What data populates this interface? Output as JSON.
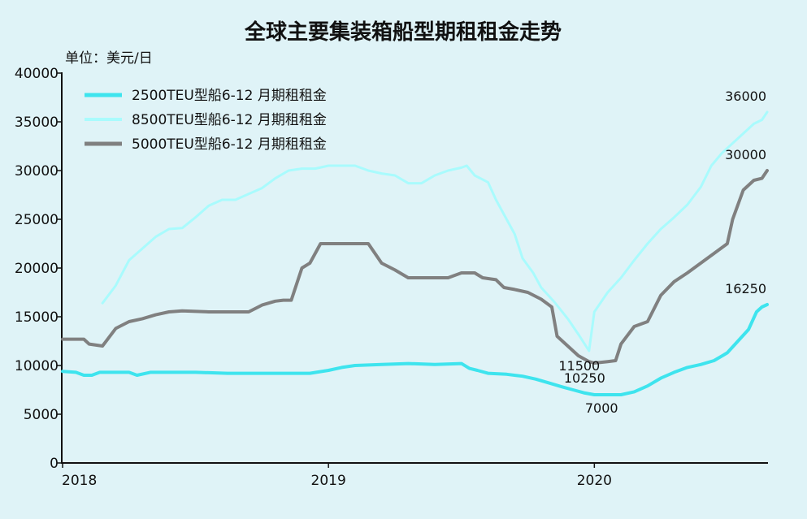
{
  "chart_data": {
    "type": "line",
    "title": "全球主要集装箱船型期租租金走势",
    "unit_label": "单位：美元/日",
    "ylim": [
      0,
      40000
    ],
    "y_ticks": [
      "0",
      "5000",
      "10000",
      "15000",
      "20000",
      "25000",
      "30000",
      "35000",
      "40000"
    ],
    "x_ticks": [
      {
        "label": "2018",
        "t": 2018.0
      },
      {
        "label": "2019",
        "t": 2019.0
      },
      {
        "label": "2020",
        "t": 2020.0
      }
    ],
    "xlim": [
      2018.0,
      2020.65
    ],
    "grid": false,
    "legend_position": "top-left",
    "series": [
      {
        "name": "2500TEU型船6-12 月期租租金",
        "color": "#3ee4ee",
        "width": 4,
        "points": [
          [
            2018.0,
            9400
          ],
          [
            2018.05,
            9300
          ],
          [
            2018.08,
            9000
          ],
          [
            2018.11,
            9000
          ],
          [
            2018.14,
            9300
          ],
          [
            2018.25,
            9300
          ],
          [
            2018.28,
            9000
          ],
          [
            2018.33,
            9300
          ],
          [
            2018.5,
            9300
          ],
          [
            2018.62,
            9200
          ],
          [
            2018.75,
            9200
          ],
          [
            2018.86,
            9200
          ],
          [
            2018.93,
            9200
          ],
          [
            2019.0,
            9500
          ],
          [
            2019.05,
            9800
          ],
          [
            2019.1,
            10000
          ],
          [
            2019.2,
            10100
          ],
          [
            2019.3,
            10200
          ],
          [
            2019.4,
            10100
          ],
          [
            2019.5,
            10200
          ],
          [
            2019.53,
            9700
          ],
          [
            2019.56,
            9500
          ],
          [
            2019.6,
            9200
          ],
          [
            2019.67,
            9100
          ],
          [
            2019.73,
            8900
          ],
          [
            2019.78,
            8600
          ],
          [
            2019.83,
            8200
          ],
          [
            2019.88,
            7800
          ],
          [
            2019.92,
            7500
          ],
          [
            2019.96,
            7200
          ],
          [
            2020.0,
            7000
          ],
          [
            2020.05,
            7000
          ],
          [
            2020.1,
            7000
          ],
          [
            2020.15,
            7300
          ],
          [
            2020.2,
            7900
          ],
          [
            2020.25,
            8700
          ],
          [
            2020.3,
            9300
          ],
          [
            2020.35,
            9800
          ],
          [
            2020.4,
            10100
          ],
          [
            2020.45,
            10500
          ],
          [
            2020.5,
            11300
          ],
          [
            2020.54,
            12500
          ],
          [
            2020.58,
            13700
          ],
          [
            2020.61,
            15500
          ],
          [
            2020.63,
            16000
          ],
          [
            2020.65,
            16250
          ]
        ]
      },
      {
        "name": "8500TEU型船6-12 月期租租金",
        "color": "#a9fbfd",
        "width": 3,
        "points": [
          [
            2018.15,
            16400
          ],
          [
            2018.2,
            18200
          ],
          [
            2018.25,
            20800
          ],
          [
            2018.3,
            22000
          ],
          [
            2018.35,
            23200
          ],
          [
            2018.4,
            24000
          ],
          [
            2018.45,
            24100
          ],
          [
            2018.5,
            25200
          ],
          [
            2018.55,
            26400
          ],
          [
            2018.6,
            27000
          ],
          [
            2018.65,
            27000
          ],
          [
            2018.7,
            27600
          ],
          [
            2018.75,
            28200
          ],
          [
            2018.8,
            29200
          ],
          [
            2018.85,
            30000
          ],
          [
            2018.9,
            30200
          ],
          [
            2018.95,
            30200
          ],
          [
            2019.0,
            30500
          ],
          [
            2019.05,
            30500
          ],
          [
            2019.1,
            30500
          ],
          [
            2019.15,
            30000
          ],
          [
            2019.2,
            29700
          ],
          [
            2019.25,
            29500
          ],
          [
            2019.3,
            28700
          ],
          [
            2019.35,
            28700
          ],
          [
            2019.4,
            29500
          ],
          [
            2019.45,
            30000
          ],
          [
            2019.5,
            30300
          ],
          [
            2019.52,
            30500
          ],
          [
            2019.55,
            29500
          ],
          [
            2019.6,
            28800
          ],
          [
            2019.63,
            27000
          ],
          [
            2019.66,
            25500
          ],
          [
            2019.7,
            23500
          ],
          [
            2019.73,
            21000
          ],
          [
            2019.77,
            19500
          ],
          [
            2019.8,
            18000
          ],
          [
            2019.85,
            16500
          ],
          [
            2019.9,
            14800
          ],
          [
            2019.94,
            13200
          ],
          [
            2019.98,
            11500
          ],
          [
            2020.0,
            15500
          ],
          [
            2020.05,
            17500
          ],
          [
            2020.1,
            19000
          ],
          [
            2020.15,
            20800
          ],
          [
            2020.2,
            22500
          ],
          [
            2020.25,
            24000
          ],
          [
            2020.3,
            25200
          ],
          [
            2020.35,
            26500
          ],
          [
            2020.4,
            28300
          ],
          [
            2020.44,
            30500
          ],
          [
            2020.48,
            31800
          ],
          [
            2020.52,
            32800
          ],
          [
            2020.56,
            33800
          ],
          [
            2020.6,
            34800
          ],
          [
            2020.63,
            35200
          ],
          [
            2020.65,
            36000
          ]
        ]
      },
      {
        "name": "5000TEU型船6-12 月期租租金",
        "color": "#808080",
        "width": 4,
        "points": [
          [
            2018.0,
            12700
          ],
          [
            2018.08,
            12700
          ],
          [
            2018.1,
            12200
          ],
          [
            2018.15,
            12000
          ],
          [
            2018.2,
            13800
          ],
          [
            2018.25,
            14500
          ],
          [
            2018.3,
            14800
          ],
          [
            2018.35,
            15200
          ],
          [
            2018.4,
            15500
          ],
          [
            2018.45,
            15600
          ],
          [
            2018.55,
            15500
          ],
          [
            2018.7,
            15500
          ],
          [
            2018.75,
            16200
          ],
          [
            2018.8,
            16600
          ],
          [
            2018.83,
            16700
          ],
          [
            2018.86,
            16700
          ],
          [
            2018.9,
            20000
          ],
          [
            2018.93,
            20500
          ],
          [
            2018.97,
            22500
          ],
          [
            2019.05,
            22500
          ],
          [
            2019.15,
            22500
          ],
          [
            2019.2,
            20500
          ],
          [
            2019.25,
            19800
          ],
          [
            2019.3,
            19000
          ],
          [
            2019.35,
            19000
          ],
          [
            2019.45,
            19000
          ],
          [
            2019.5,
            19500
          ],
          [
            2019.55,
            19500
          ],
          [
            2019.58,
            19000
          ],
          [
            2019.63,
            18800
          ],
          [
            2019.66,
            18000
          ],
          [
            2019.7,
            17800
          ],
          [
            2019.75,
            17500
          ],
          [
            2019.8,
            16800
          ],
          [
            2019.84,
            16000
          ],
          [
            2019.86,
            13000
          ],
          [
            2019.9,
            12000
          ],
          [
            2019.94,
            11000
          ],
          [
            2019.98,
            10400
          ],
          [
            2020.0,
            10250
          ],
          [
            2020.05,
            10400
          ],
          [
            2020.08,
            10500
          ],
          [
            2020.1,
            12200
          ],
          [
            2020.15,
            14000
          ],
          [
            2020.2,
            14500
          ],
          [
            2020.25,
            17200
          ],
          [
            2020.3,
            18600
          ],
          [
            2020.35,
            19500
          ],
          [
            2020.4,
            20500
          ],
          [
            2020.45,
            21500
          ],
          [
            2020.5,
            22500
          ],
          [
            2020.52,
            25000
          ],
          [
            2020.56,
            28000
          ],
          [
            2020.6,
            29000
          ],
          [
            2020.63,
            29200
          ],
          [
            2020.65,
            30000
          ]
        ]
      }
    ],
    "annotations": [
      {
        "text": "36000",
        "x": 2020.65,
        "y": 36000
      },
      {
        "text": "30000",
        "x": 2020.65,
        "y": 30000
      },
      {
        "text": "16250",
        "x": 2020.65,
        "y": 16250
      },
      {
        "text": "11500",
        "x": 2019.98,
        "y": 11500
      },
      {
        "text": "10250",
        "x": 2020.0,
        "y": 10250
      },
      {
        "text": "7000",
        "x": 2020.02,
        "y": 7000
      }
    ]
  }
}
